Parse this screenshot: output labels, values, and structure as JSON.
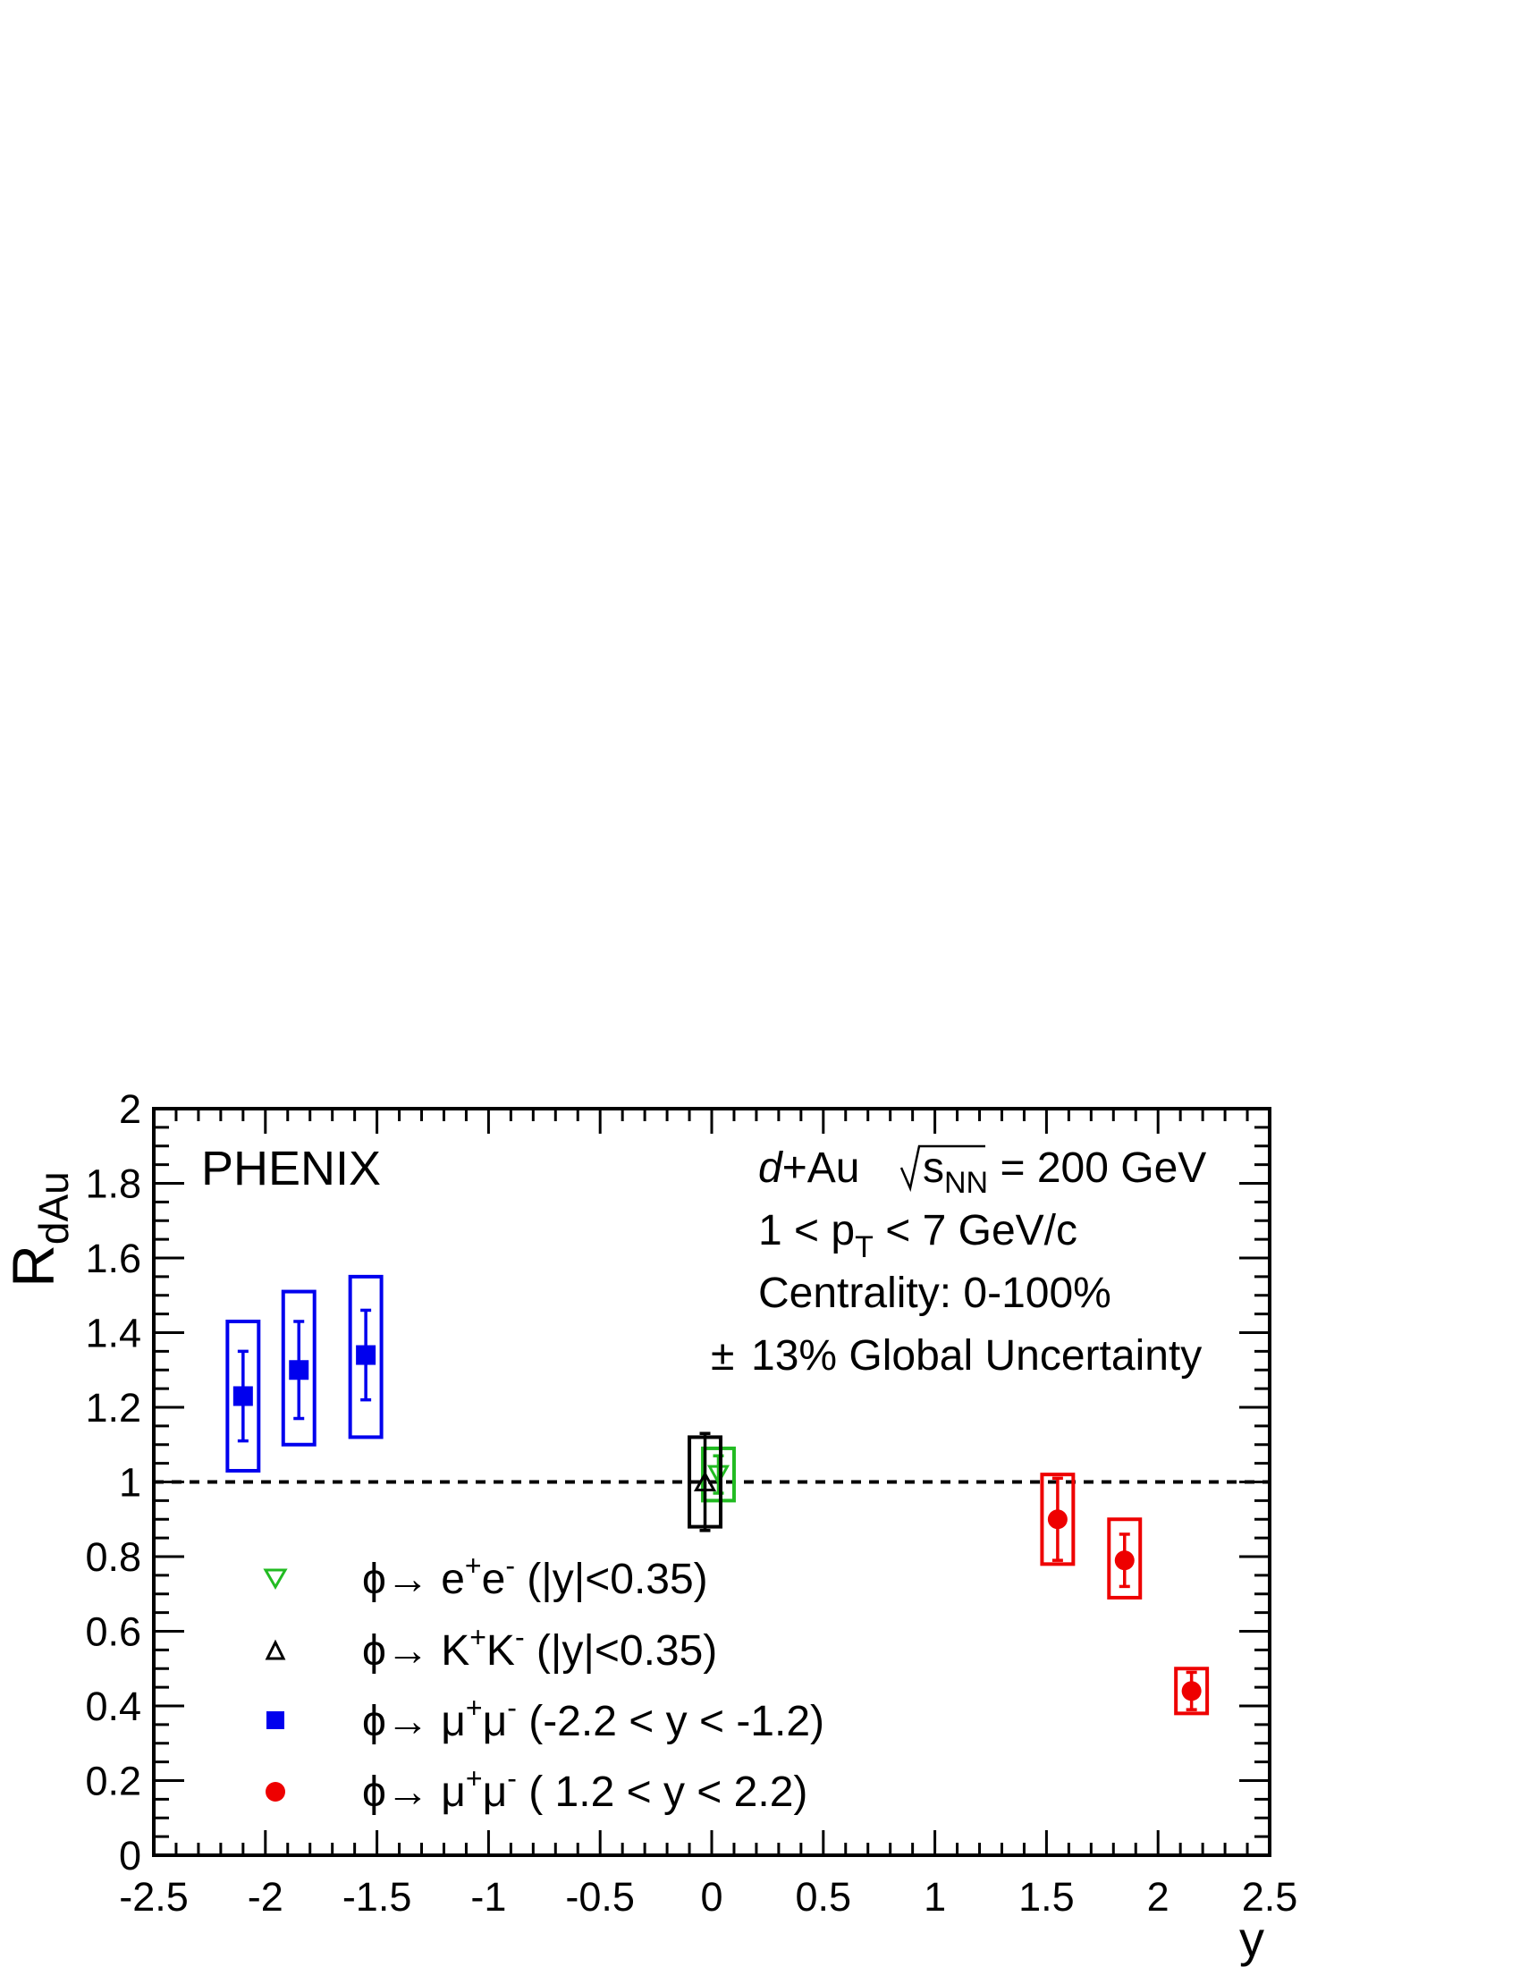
{
  "chart_data": {
    "type": "scatter",
    "experiment": "PHENIX",
    "ylabel_main": "R",
    "ylabel_sub": "dAu",
    "xlabel": "y",
    "xlim": [
      -2.5,
      2.5
    ],
    "ylim": [
      0,
      2
    ],
    "xticks": [
      -2.5,
      -2,
      -1.5,
      -1,
      -0.5,
      0,
      0.5,
      1,
      1.5,
      2,
      2.5
    ],
    "xtick_labels": [
      "-2.5",
      "-2",
      "-1.5",
      "-1",
      "-0.5",
      "0",
      "0.5",
      "1",
      "1.5",
      "2",
      "2.5"
    ],
    "yticks": [
      0,
      0.2,
      0.4,
      0.6,
      0.8,
      1,
      1.2,
      1.4,
      1.6,
      1.8,
      2
    ],
    "ytick_labels": [
      "0",
      "0.2",
      "0.4",
      "0.6",
      "0.8",
      "1",
      "1.2",
      "1.4",
      "1.6",
      "1.8",
      "2"
    ],
    "reference_line": 1,
    "info": {
      "system_italic": "d",
      "system_rest": "+Au",
      "sqrt_s": "s",
      "sqrt_s_sub": "NN",
      "energy": " = 200 GeV",
      "pt_a": "1 < p",
      "pt_sub": "T",
      "pt_b": " < 7 GeV/c",
      "centrality": "Centrality: 0-100%",
      "global_pm": "±",
      "global": "13% Global Uncertainty"
    },
    "series": [
      {
        "marker": "open-triangle-down",
        "color": "#22bb22",
        "legend": {
          "phi": "ϕ→ ",
          "l1": "e",
          "s1": "+",
          "l2": "e",
          "s2": "-",
          "range": " (|y|<0.35)"
        },
        "points": [
          {
            "x": 0.03,
            "y": 1.02,
            "stat": 0.05,
            "sys_low": 0.95,
            "sys_high": 1.09,
            "sys_hw": 0.07
          }
        ]
      },
      {
        "marker": "open-triangle-up",
        "color": "#000000",
        "legend": {
          "phi": "ϕ→ ",
          "l1": "K",
          "s1": "+",
          "l2": "K",
          "s2": "-",
          "range": " (|y|<0.35)"
        },
        "points": [
          {
            "x": -0.03,
            "y": 1.0,
            "stat": 0.13,
            "sys_low": 0.88,
            "sys_high": 1.12,
            "sys_hw": 0.07
          }
        ]
      },
      {
        "marker": "filled-square",
        "color": "#0000ee",
        "legend": {
          "phi": "ϕ→ ",
          "l1": "μ",
          "s1": "+",
          "l2": "μ",
          "s2": "-",
          "range": " (-2.2 < y < -1.2)"
        },
        "points": [
          {
            "x": -2.1,
            "y": 1.23,
            "stat": 0.12,
            "sys_low": 1.03,
            "sys_high": 1.43,
            "sys_hw": 0.07
          },
          {
            "x": -1.85,
            "y": 1.3,
            "stat": 0.13,
            "sys_low": 1.1,
            "sys_high": 1.51,
            "sys_hw": 0.07
          },
          {
            "x": -1.55,
            "y": 1.34,
            "stat": 0.12,
            "sys_low": 1.12,
            "sys_high": 1.55,
            "sys_hw": 0.07
          }
        ]
      },
      {
        "marker": "filled-circle",
        "color": "#ee0000",
        "legend": {
          "phi": "ϕ→ ",
          "l1": "μ",
          "s1": "+",
          "l2": "μ",
          "s2": "-",
          "range": " ( 1.2 < y <  2.2)"
        },
        "points": [
          {
            "x": 1.55,
            "y": 0.9,
            "stat": 0.11,
            "sys_low": 0.78,
            "sys_high": 1.02,
            "sys_hw": 0.07
          },
          {
            "x": 1.85,
            "y": 0.79,
            "stat": 0.07,
            "sys_low": 0.69,
            "sys_high": 0.9,
            "sys_hw": 0.07
          },
          {
            "x": 2.15,
            "y": 0.44,
            "stat": 0.05,
            "sys_low": 0.38,
            "sys_high": 0.5,
            "sys_hw": 0.07
          }
        ]
      }
    ]
  }
}
